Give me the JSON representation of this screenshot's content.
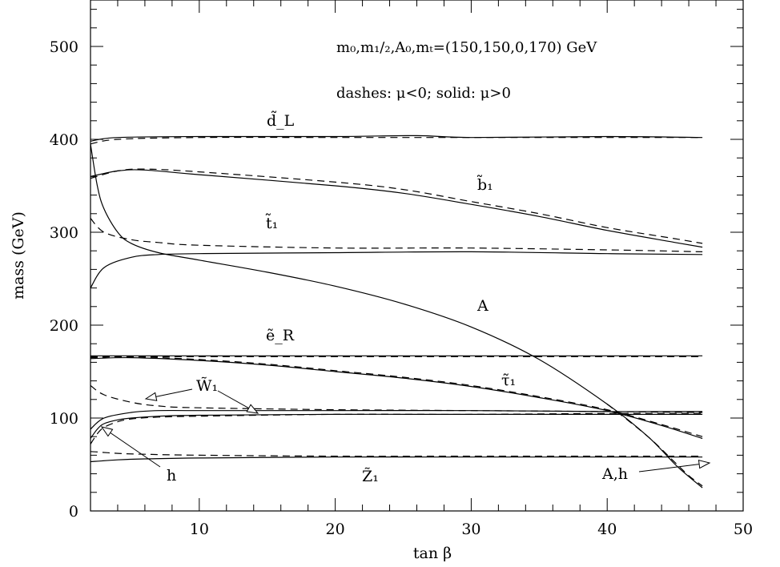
{
  "chart_data": {
    "type": "line",
    "title": "",
    "xlabel": "tan β",
    "ylabel": "mass (GeV)",
    "xlim": [
      2,
      50
    ],
    "ylim": [
      0,
      550
    ],
    "xticks": [
      10,
      20,
      30,
      40,
      50
    ],
    "yticks": [
      0,
      100,
      200,
      300,
      400,
      500
    ],
    "annotations": [
      "m₀,m₁/₂,A₀,mₜ=(150,150,0,170) GeV",
      "dashes: μ<0; solid: μ>0"
    ],
    "curve_labels": [
      "d̃_L",
      "b̃₁",
      "t̃₁",
      "A",
      "ẽ_R",
      "τ̃₁",
      "W̃₁",
      "h",
      "Z̃₁",
      "A,h"
    ],
    "series": [
      {
        "name": "d̃_L",
        "style": "solid",
        "x": [
          2,
          4,
          10,
          20,
          26,
          30,
          40,
          47
        ],
        "y": [
          398,
          402,
          403,
          403,
          404,
          402,
          403,
          402
        ]
      },
      {
        "name": "d̃_L",
        "style": "dashed",
        "x": [
          2,
          4,
          10,
          20,
          30,
          40,
          47
        ],
        "y": [
          395,
          400,
          402,
          402,
          402,
          402,
          402
        ]
      },
      {
        "name": "b̃₁",
        "style": "solid",
        "x": [
          2,
          4,
          6,
          10,
          20,
          25,
          30,
          35,
          40,
          45,
          47
        ],
        "y": [
          360,
          366,
          367,
          362,
          350,
          342,
          330,
          317,
          302,
          289,
          284
        ]
      },
      {
        "name": "b̃₁",
        "style": "dashed",
        "x": [
          2,
          4,
          6,
          10,
          20,
          25,
          30,
          35,
          40,
          45,
          47
        ],
        "y": [
          358,
          366,
          368,
          365,
          354,
          346,
          333,
          320,
          305,
          293,
          288
        ]
      },
      {
        "name": "t̃₁",
        "style": "solid",
        "x": [
          2,
          3,
          5,
          7,
          10,
          20,
          30,
          40,
          47
        ],
        "y": [
          240,
          262,
          273,
          276,
          277,
          278,
          279,
          277,
          276
        ]
      },
      {
        "name": "t̃₁",
        "style": "dashed",
        "x": [
          2,
          3,
          5,
          7,
          10,
          20,
          30,
          40,
          47
        ],
        "y": [
          315,
          300,
          292,
          289,
          286,
          283,
          283,
          281,
          279
        ]
      },
      {
        "name": "A",
        "style": "solid",
        "x": [
          2,
          2.5,
          3,
          4,
          5,
          7,
          10,
          15,
          20,
          25,
          30,
          35,
          40,
          43,
          45,
          46,
          47
        ],
        "y": [
          395,
          350,
          325,
          300,
          288,
          278,
          270,
          257,
          242,
          223,
          198,
          163,
          115,
          80,
          50,
          37,
          25
        ]
      },
      {
        "name": "A",
        "style": "dashed",
        "x": [
          40,
          43,
          45,
          46,
          47
        ],
        "y": [
          115,
          80,
          52,
          38,
          27
        ]
      },
      {
        "name": "ẽ_R",
        "style": "solid",
        "x": [
          2,
          47
        ],
        "y": [
          167,
          167
        ]
      },
      {
        "name": "ẽ_R",
        "style": "dashed",
        "x": [
          2,
          47
        ],
        "y": [
          166,
          166
        ]
      },
      {
        "name": "τ̃₁",
        "style": "solid",
        "x": [
          2,
          5,
          10,
          15,
          20,
          25,
          30,
          35,
          40,
          44,
          47
        ],
        "y": [
          164,
          165,
          162,
          157,
          150,
          143,
          134,
          122,
          108,
          92,
          78
        ]
      },
      {
        "name": "τ̃₁",
        "style": "dashed",
        "x": [
          2,
          5,
          10,
          15,
          20,
          25,
          30,
          35,
          40,
          44,
          47
        ],
        "y": [
          165,
          166,
          163,
          158,
          151,
          144,
          135,
          123,
          109,
          93,
          80
        ]
      },
      {
        "name": "W̃₁",
        "style": "solid",
        "x": [
          2,
          3,
          5,
          7,
          10,
          20,
          30,
          40,
          47
        ],
        "y": [
          88,
          100,
          106,
          108,
          108,
          108,
          108,
          107,
          107
        ]
      },
      {
        "name": "W̃₁",
        "style": "dashed",
        "x": [
          2,
          3,
          5,
          7,
          10,
          20,
          30,
          40,
          47
        ],
        "y": [
          135,
          125,
          117,
          113,
          111,
          109,
          108,
          107,
          106
        ]
      },
      {
        "name": "h",
        "style": "solid",
        "x": [
          2,
          2.5,
          3,
          4,
          5,
          7,
          10,
          20,
          30,
          40,
          44,
          46,
          47
        ],
        "y": [
          78,
          88,
          94,
          98,
          100,
          102,
          103,
          104,
          104,
          104,
          104,
          104,
          104
        ]
      },
      {
        "name": "h",
        "style": "dashed",
        "x": [
          2,
          2.5,
          3,
          4,
          5,
          7,
          10,
          20,
          30,
          40,
          44,
          47
        ],
        "y": [
          72,
          83,
          90,
          96,
          99,
          101,
          102,
          104,
          104,
          105,
          105,
          105
        ]
      },
      {
        "name": "Z̃₁",
        "style": "solid",
        "x": [
          2,
          4,
          6,
          10,
          20,
          30,
          40,
          47
        ],
        "y": [
          53,
          55,
          56,
          57,
          58,
          58,
          58,
          58
        ]
      },
      {
        "name": "Z̃₁",
        "style": "dashed",
        "x": [
          2,
          4,
          6,
          10,
          20,
          30,
          40,
          47
        ],
        "y": [
          64,
          62,
          61,
          60,
          59,
          59,
          59,
          59
        ]
      }
    ]
  }
}
